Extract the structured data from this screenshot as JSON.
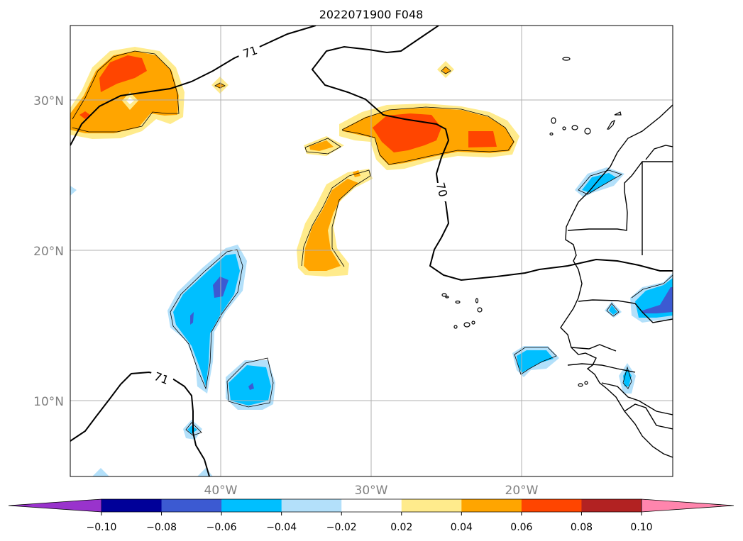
{
  "title": "2022071900 F048",
  "lat_labels": [
    "30°N",
    "20°N",
    "10°N"
  ],
  "lon_labels": [
    "40°W",
    "30°W",
    "20°W"
  ],
  "contour_labels": [
    "71",
    "70",
    "71"
  ],
  "colorbar": {
    "ticks": [
      "−0.10",
      "−0.08",
      "−0.06",
      "−0.04",
      "−0.02",
      "0.02",
      "0.04",
      "0.06",
      "0.08",
      "0.10"
    ],
    "colors": [
      "#9933cc",
      "#000099",
      "#3c5ad2",
      "#00bfff",
      "#b3e0fa",
      "#ffffff",
      "#ffeb8c",
      "#ffa500",
      "#ff4500",
      "#b22222",
      "#ff85ad"
    ]
  },
  "field_colors": {
    "pos_low": "#ffeb8c",
    "pos_mid": "#ffa500",
    "pos_high": "#ff4500",
    "neg_low": "#b3e0fa",
    "neg_mid": "#00bfff",
    "neg_high": "#3c5ad2"
  }
}
